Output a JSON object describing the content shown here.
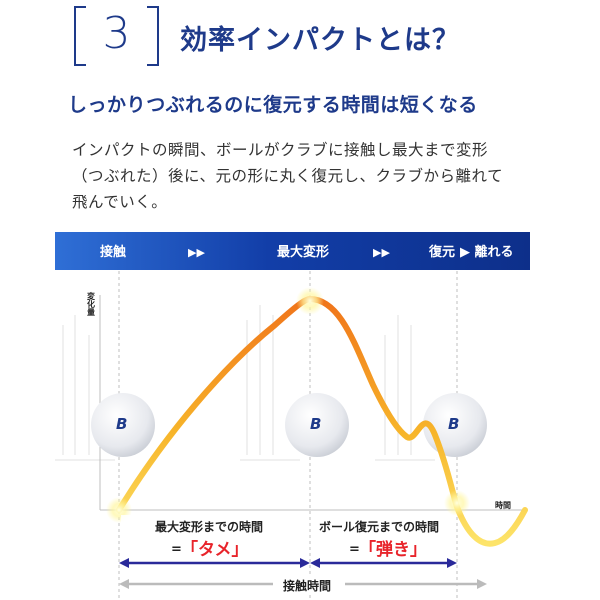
{
  "section": {
    "number": "3",
    "title": "効率インパクトとは？"
  },
  "subtitle": "しっかりつぶれるのに復元する時間は短くなる",
  "description": "インパクトの瞬間、ボールがクラブに接触し最大まで変形\n（つぶれた）後に、元の形に丸く復元し、クラブから離れて\n飛んでいく。",
  "phase_bar": {
    "contact": "接触",
    "arrows": "▶▶",
    "max_deform": "最大変形",
    "restore": "復元",
    "separate": "▶ 離れる"
  },
  "axes": {
    "y_label": "変化量",
    "x_label": "時間"
  },
  "ball_logo": "B",
  "annotations": {
    "left_title": "最大変形までの時間",
    "left_prefix": "=",
    "left_value": "「タメ」",
    "right_title": "ボール復元までの時間",
    "right_prefix": "=",
    "right_value": "「弾き」",
    "total": "接触時間"
  },
  "colors": {
    "navy": "#1e3a8a",
    "highlight": "#e8242b",
    "arrow_blue": "#2a2a9a",
    "gray_arrow": "#bbbbbb"
  }
}
